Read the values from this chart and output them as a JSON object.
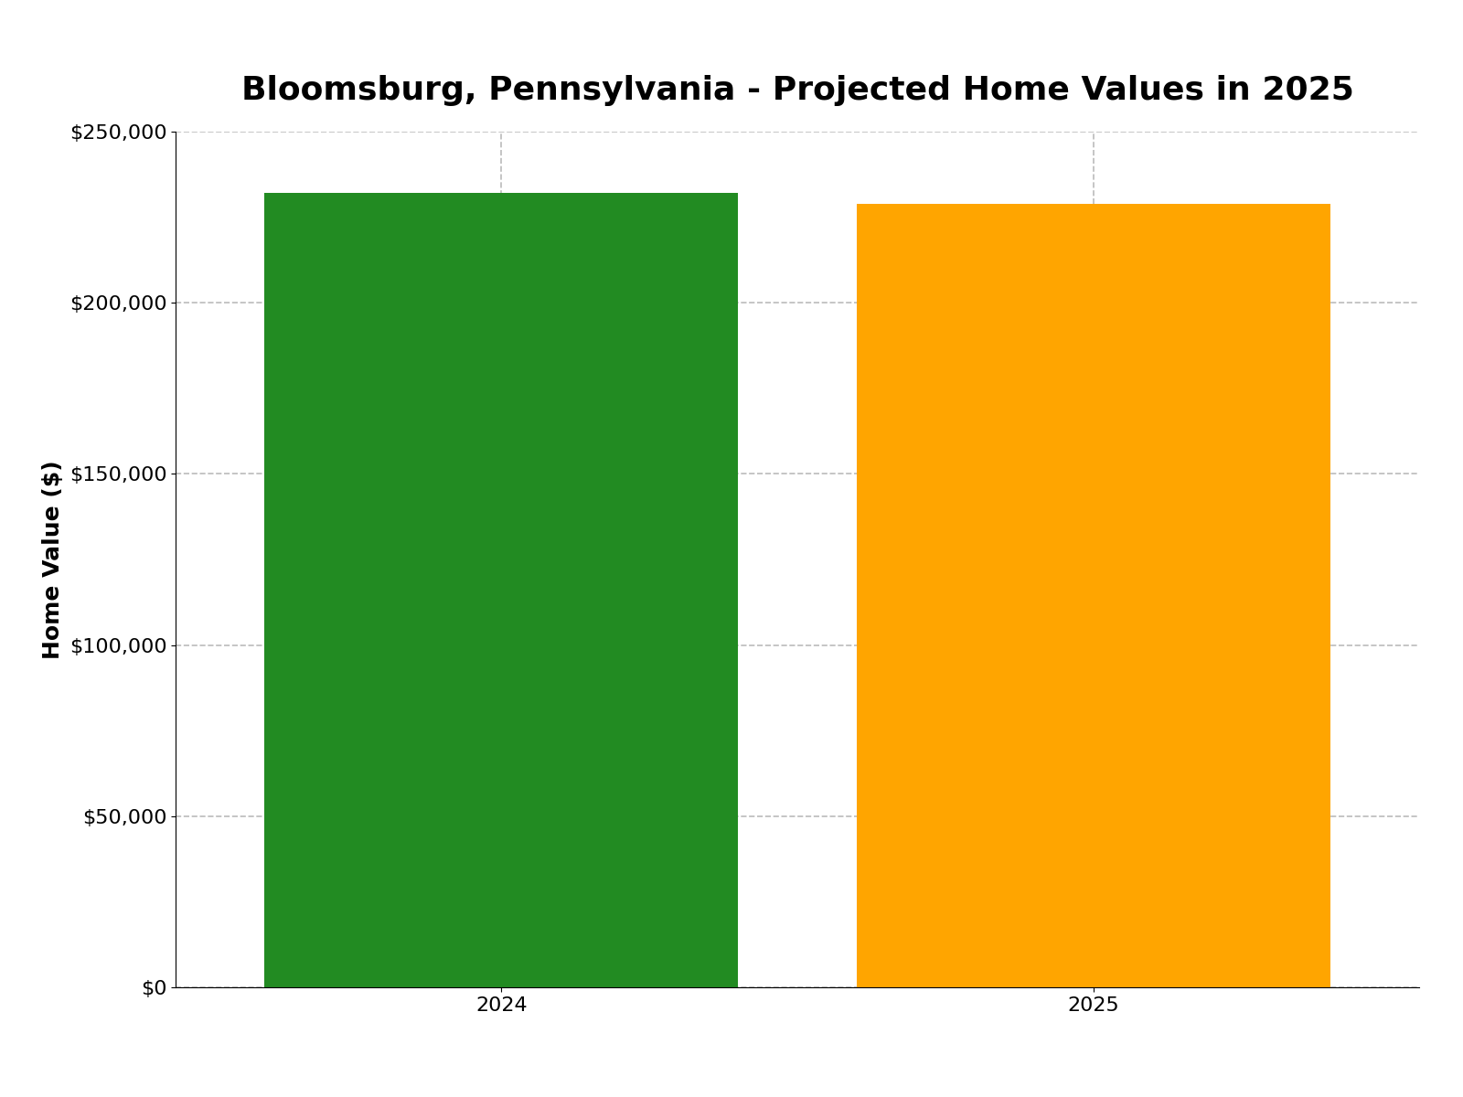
{
  "title": "Bloomsburg, Pennsylvania - Projected Home Values in 2025",
  "categories": [
    "2024",
    "2025"
  ],
  "values": [
    232000,
    229000
  ],
  "bar_colors": [
    "#228B22",
    "#FFA500"
  ],
  "ylabel": "Home Value ($)",
  "ylim": [
    0,
    250000
  ],
  "yticks": [
    0,
    50000,
    100000,
    150000,
    200000,
    250000
  ],
  "ytick_labels": [
    "$0",
    "$50,000",
    "$100,000",
    "$150,000",
    "$200,000",
    "$250,000"
  ],
  "title_fontsize": 26,
  "axis_label_fontsize": 18,
  "tick_fontsize": 16,
  "grid_color": "#bbbbbb",
  "grid_style": "--",
  "background_color": "#ffffff",
  "bar_width": 0.8
}
